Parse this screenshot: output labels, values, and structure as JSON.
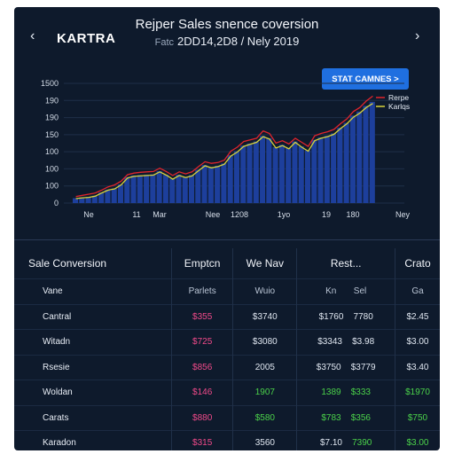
{
  "header": {
    "brand": "KARTRA",
    "title": "Rejper Sales snence coversion",
    "subtitle_prefix": "Fatc",
    "subtitle": "2DD14,2D8 / Nely 2019",
    "prev_icon": "chevron-left-icon",
    "next_icon": "chevron-right-icon"
  },
  "cta": {
    "label": "STAT CAMNES  >"
  },
  "colors": {
    "panel": "#0e1a2c",
    "accent": "#1f6fe0",
    "bars": "#1d3f9c",
    "red_line": "#e0242c",
    "yellow_line": "#d9d33a",
    "pink": "#f14a8a",
    "green": "#4bd24a"
  },
  "chart_data": {
    "type": "bar",
    "title": "Rejper Sales snence coversion",
    "y_ticks": [
      "1500",
      "190",
      "190",
      "150",
      "100",
      "100",
      "100",
      "0"
    ],
    "x_ticks": [
      "Ne",
      "11",
      "Mar",
      "Nee",
      "1208",
      "1yo",
      "19",
      "180",
      "Ney"
    ],
    "ylim": [
      0,
      1500
    ],
    "legend": [
      "Rerpe",
      "Karlqs"
    ],
    "values": [
      60,
      70,
      75,
      90,
      130,
      165,
      180,
      230,
      320,
      340,
      345,
      350,
      355,
      395,
      350,
      300,
      350,
      320,
      345,
      410,
      470,
      445,
      460,
      490,
      590,
      640,
      710,
      735,
      760,
      830,
      800,
      690,
      720,
      680,
      760,
      700,
      650,
      780,
      810,
      830,
      860,
      930,
      990,
      1080,
      1130,
      1200,
      1250
    ],
    "series": [
      {
        "name": "Rerpe",
        "values": [
          80,
          95,
          110,
          125,
          160,
          200,
          225,
          270,
          350,
          370,
          380,
          385,
          390,
          430,
          390,
          340,
          385,
          360,
          385,
          450,
          510,
          490,
          500,
          530,
          640,
          690,
          760,
          780,
          800,
          890,
          860,
          740,
          770,
          730,
          800,
          750,
          700,
          830,
          860,
          880,
          910,
          980,
          1040,
          1130,
          1180,
          1260,
          1320
        ]
      },
      {
        "name": "Karlqs",
        "values": [
          55,
          65,
          70,
          85,
          125,
          160,
          175,
          225,
          310,
          330,
          335,
          340,
          345,
          385,
          345,
          295,
          340,
          315,
          335,
          400,
          460,
          435,
          450,
          480,
          580,
          630,
          700,
          725,
          750,
          820,
          790,
          680,
          710,
          670,
          750,
          690,
          640,
          770,
          800,
          820,
          850,
          920,
          980,
          1060,
          1110,
          1180,
          1230
        ]
      }
    ]
  },
  "table": {
    "headers": [
      "Sale Conversion",
      "Emptcn",
      "We Nav",
      "Rest...",
      "Crato"
    ],
    "subheaders": [
      "Vane",
      "Parlets",
      "Wuio",
      "Kn",
      "Sel",
      "Ga"
    ],
    "rows": [
      {
        "name": "Cantral",
        "c1": "$355",
        "c2": "$3740",
        "c3": "$1760",
        "c4": "7780",
        "c5": "$2.45"
      },
      {
        "name": "Witadn",
        "c1": "$725",
        "c2": "$3080",
        "c3": "$3343",
        "c4": "$3.98",
        "c5": "$3.00"
      },
      {
        "name": "Rsesie",
        "c1": "$856",
        "c2": "2005",
        "c3": "$3750",
        "c4": "$3779",
        "c5": "$3.40"
      },
      {
        "name": "Woldan",
        "c1": "$146",
        "c2": "1907",
        "c3": "1389",
        "c4": "$333",
        "c5": "$1970"
      },
      {
        "name": "Carats",
        "c1": "$880",
        "c2": "$580",
        "c3": "$783",
        "c4": "$356",
        "c5": "$750"
      },
      {
        "name": "Karadon",
        "c1": "$315",
        "c2": "3560",
        "c3": "$7.10",
        "c4": "7390",
        "c5": "$3.00"
      }
    ]
  }
}
